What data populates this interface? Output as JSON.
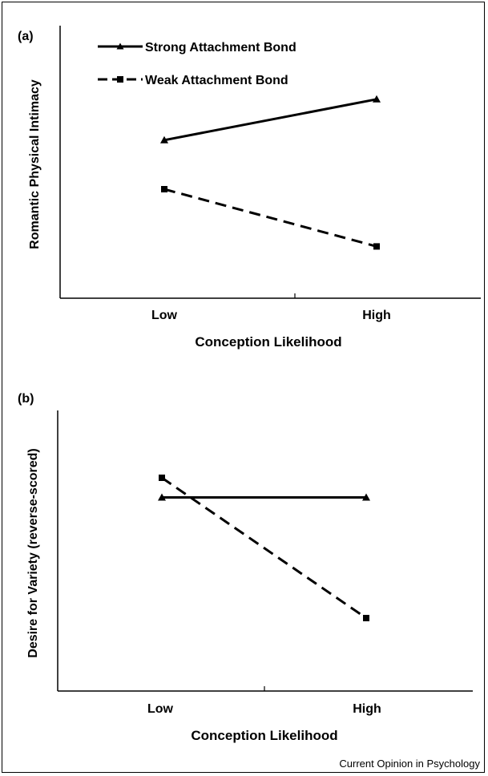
{
  "source_credit": "Current Opinion in Psychology",
  "legend": {
    "strong": "Strong Attachment Bond",
    "weak": "Weak Attachment Bond"
  },
  "chart_data": [
    {
      "type": "line",
      "panel": "(a)",
      "xlabel": "Conception Likelihood",
      "ylabel": "Romantic Physical Intimacy",
      "categories": [
        "Low",
        "High"
      ],
      "ylim": [
        0,
        10
      ],
      "legend_placement": "top-left",
      "grid": false,
      "series": [
        {
          "name": "Strong Attachment Bond",
          "marker": "triangle",
          "style": "solid",
          "values": [
            5.8,
            7.3
          ]
        },
        {
          "name": "Weak Attachment Bond",
          "marker": "square",
          "style": "dashed",
          "values": [
            4.0,
            1.9
          ]
        }
      ]
    },
    {
      "type": "line",
      "panel": "(b)",
      "xlabel": "Conception Likelihood",
      "ylabel": "Desire for Variety (reverse-scored)",
      "categories": [
        "Low",
        "High"
      ],
      "ylim": [
        0,
        10
      ],
      "legend_placement": "none",
      "grid": false,
      "series": [
        {
          "name": "Strong Attachment Bond",
          "marker": "triangle",
          "style": "solid",
          "values": [
            6.9,
            6.9
          ]
        },
        {
          "name": "Weak Attachment Bond",
          "marker": "square",
          "style": "dashed",
          "values": [
            7.6,
            2.6
          ]
        }
      ]
    }
  ]
}
